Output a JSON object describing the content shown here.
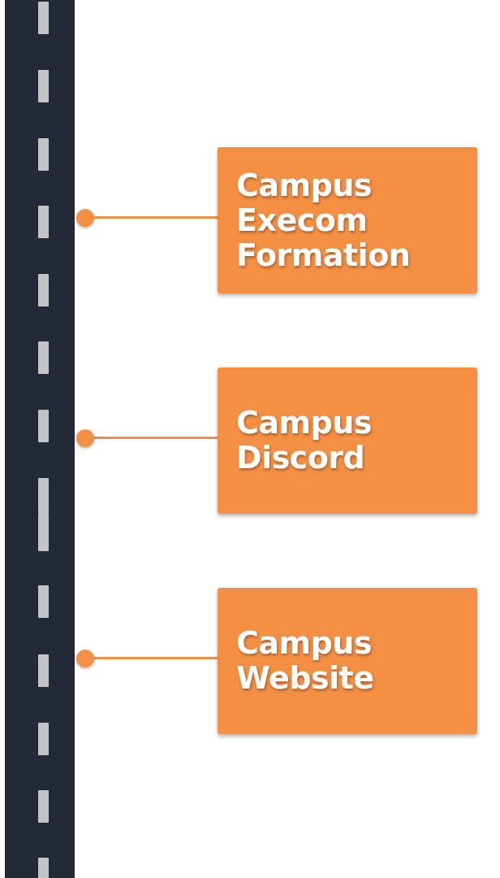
{
  "colors": {
    "road": "#232a35",
    "lane_marking": "#c4c4c4",
    "accent": "#f48f43",
    "card_text": "#ffffff",
    "background": "#ffffff"
  },
  "milestones": [
    {
      "label": "Campus\nExecom\nFormation"
    },
    {
      "label": "Campus\nDiscord"
    },
    {
      "label": "Campus\nWebsite"
    }
  ]
}
